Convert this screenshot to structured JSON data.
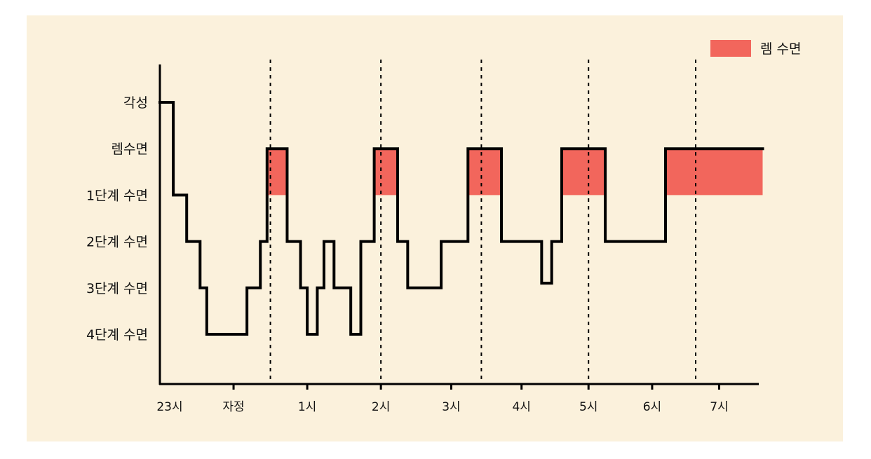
{
  "chart_data": {
    "type": "line",
    "title": "",
    "xlabel": "",
    "ylabel": "",
    "x_unit": "hours after 23시",
    "y_levels": [
      "각성",
      "렘수면",
      "1단계 수면",
      "2단계 수면",
      "3단계 수면",
      "4단계 수면"
    ],
    "x_tick_labels": [
      "23시",
      "자정",
      "1시",
      "2시",
      "3시",
      "4시",
      "5시",
      "6시",
      "7시"
    ],
    "x_tick_values": [
      0,
      1.1,
      2.2,
      3.3,
      4.35,
      5.4,
      6.4,
      7.35,
      8.35
    ],
    "dotted_lines_x": [
      1.65,
      3.3,
      4.8,
      6.4,
      8.0
    ],
    "legend": {
      "label": "렘 수면",
      "position": "top-right",
      "color": "#f2665c"
    },
    "colors": {
      "background": "#fbf1dc",
      "line": "#000000",
      "rem_fill": "#f2665c"
    },
    "hypnogram": [
      {
        "x": 0.0,
        "level": 0
      },
      {
        "x": 0.2,
        "level": 2
      },
      {
        "x": 0.4,
        "level": 3
      },
      {
        "x": 0.6,
        "level": 4
      },
      {
        "x": 0.7,
        "level": 5
      },
      {
        "x": 1.3,
        "level": 4
      },
      {
        "x": 1.5,
        "level": 3
      },
      {
        "x": 1.6,
        "level": 1
      },
      {
        "x": 1.9,
        "level": 3
      },
      {
        "x": 2.1,
        "level": 4
      },
      {
        "x": 2.2,
        "level": 5
      },
      {
        "x": 2.35,
        "level": 4
      },
      {
        "x": 2.45,
        "level": 3
      },
      {
        "x": 2.6,
        "level": 4
      },
      {
        "x": 2.85,
        "level": 5
      },
      {
        "x": 3.0,
        "level": 3
      },
      {
        "x": 3.2,
        "level": 1
      },
      {
        "x": 3.55,
        "level": 3
      },
      {
        "x": 3.7,
        "level": 4
      },
      {
        "x": 4.2,
        "level": 3
      },
      {
        "x": 4.6,
        "level": 1
      },
      {
        "x": 5.1,
        "level": 3
      },
      {
        "x": 5.7,
        "level": 3.9
      },
      {
        "x": 5.85,
        "level": 3
      },
      {
        "x": 6.0,
        "level": 1
      },
      {
        "x": 6.65,
        "level": 3
      },
      {
        "x": 7.55,
        "level": 1
      },
      {
        "x": 9.0,
        "level": 1
      }
    ],
    "rem_periods": [
      {
        "start": 1.6,
        "end": 1.9
      },
      {
        "start": 3.2,
        "end": 3.55
      },
      {
        "start": 4.6,
        "end": 5.1
      },
      {
        "start": 6.0,
        "end": 6.65
      },
      {
        "start": 7.55,
        "end": 9.0
      }
    ]
  }
}
